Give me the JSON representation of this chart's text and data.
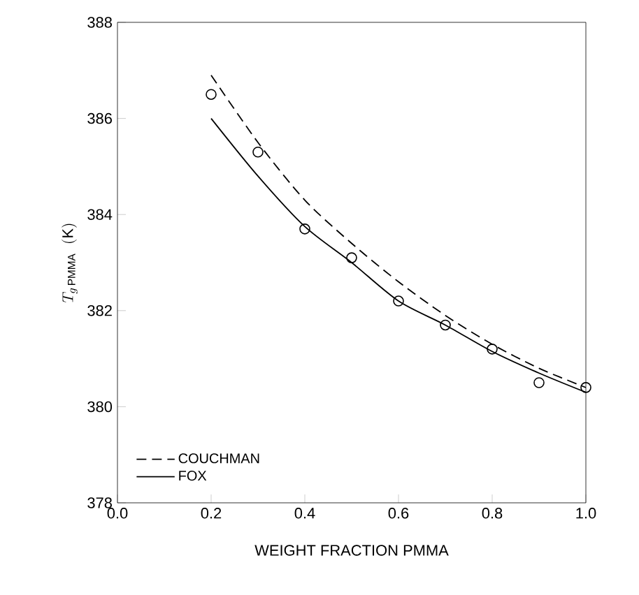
{
  "chart_data": {
    "type": "line",
    "xlabel": "WEIGHT FRACTION  PMMA",
    "ylabel": "T_{g\\,\\mathrm{PMMA}}\\;\\;(\\mathrm{K})",
    "xlim": [
      0,
      1
    ],
    "ylim": [
      378,
      388
    ],
    "xticks": [
      {
        "value": 0,
        "label": "0.0"
      },
      {
        "value": 0.2,
        "label": "0.2"
      },
      {
        "value": 0.4,
        "label": "0.4"
      },
      {
        "value": 0.6,
        "label": "0.6"
      },
      {
        "value": 0.8,
        "label": "0.8"
      },
      {
        "value": 1,
        "label": "1.0"
      }
    ],
    "yticks": [
      378,
      380,
      382,
      384,
      386,
      388
    ],
    "x": [
      0.2,
      0.3,
      0.4,
      0.5,
      0.6,
      0.7,
      0.8,
      0.9,
      1.0
    ],
    "legend": "bottom left",
    "grid": false,
    "series": [
      {
        "name": "COUCHMAN",
        "line_style": "dashed",
        "marker": "none",
        "color": "#000000",
        "values": [
          386.9,
          385.5,
          384.3,
          383.4,
          382.6,
          381.9,
          381.3,
          380.8,
          380.4
        ]
      },
      {
        "name": "FOX",
        "line_style": "solid",
        "marker": "none",
        "color": "#000000",
        "values": [
          386.0,
          384.8,
          383.75,
          383.0,
          382.2,
          381.7,
          381.15,
          380.7,
          380.3
        ]
      },
      {
        "type": "scatter",
        "marker": "circle",
        "color": "#000000",
        "values": [
          386.5,
          385.3,
          383.7,
          383.1,
          382.2,
          381.7,
          381.2,
          380.5,
          380.4
        ]
      }
    ]
  }
}
